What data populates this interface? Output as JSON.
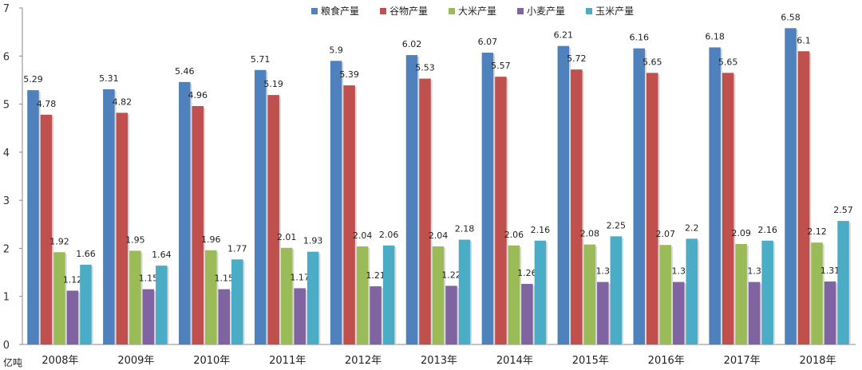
{
  "chart_data": {
    "type": "bar",
    "ylabel": "亿吨",
    "ylim": [
      0,
      7
    ],
    "yticks": [
      0,
      1,
      2,
      3,
      4,
      5,
      6,
      7
    ],
    "grid": false,
    "legend_position": "top",
    "categories": [
      "2008年",
      "2009年",
      "2010年",
      "2011年",
      "2012年",
      "2013年",
      "2014年",
      "2015年",
      "2016年",
      "2017年",
      "2018年"
    ],
    "series": [
      {
        "name": "粮食产量",
        "color": "#4F81BD",
        "values": [
          5.29,
          5.31,
          5.46,
          5.71,
          5.9,
          6.02,
          6.07,
          6.21,
          6.16,
          6.18,
          6.58
        ]
      },
      {
        "name": "谷物产量",
        "color": "#C0504D",
        "values": [
          4.78,
          4.82,
          4.96,
          5.19,
          5.39,
          5.53,
          5.57,
          5.72,
          5.65,
          5.65,
          6.1
        ]
      },
      {
        "name": "大米产量",
        "color": "#9BBB59",
        "values": [
          1.92,
          1.95,
          1.96,
          2.01,
          2.04,
          2.04,
          2.06,
          2.08,
          2.07,
          2.09,
          2.12
        ]
      },
      {
        "name": "小麦产量",
        "color": "#8064A2",
        "values": [
          1.12,
          1.15,
          1.15,
          1.17,
          1.21,
          1.22,
          1.26,
          1.3,
          1.3,
          1.3,
          1.31
        ]
      },
      {
        "name": "玉米产量",
        "color": "#4BACC6",
        "values": [
          1.66,
          1.64,
          1.77,
          1.93,
          2.06,
          2.18,
          2.16,
          2.25,
          2.2,
          2.16,
          2.57
        ]
      }
    ]
  }
}
